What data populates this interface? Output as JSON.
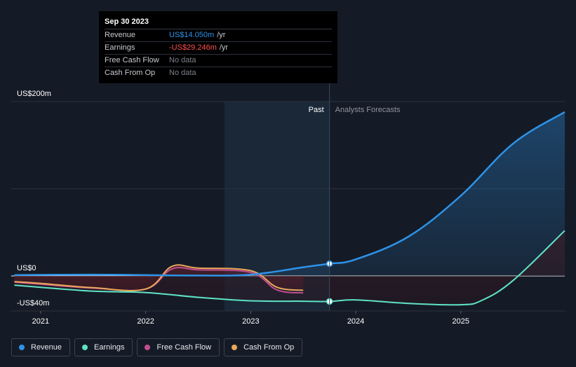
{
  "tooltip": {
    "date": "Sep 30 2023",
    "rows": [
      {
        "label": "Revenue",
        "value": "US$14.050m",
        "unit": "/yr"
      },
      {
        "label": "Earnings",
        "value": "-US$29.246m",
        "unit": "/yr"
      },
      {
        "label": "Free Cash Flow",
        "value": "No data",
        "unit": ""
      },
      {
        "label": "Cash From Op",
        "value": "No data",
        "unit": ""
      }
    ]
  },
  "regions": {
    "past": "Past",
    "forecast": "Analysts Forecasts"
  },
  "legend": [
    {
      "label": "Revenue",
      "color": "#2e93e8"
    },
    {
      "label": "Earnings",
      "color": "#5fe3c6"
    },
    {
      "label": "Free Cash Flow",
      "color": "#c14e8e"
    },
    {
      "label": "Cash From Op",
      "color": "#e9a85a"
    }
  ],
  "colors": {
    "revenue": "#2e93e8",
    "earnings": "#5fe3c6",
    "fcf": "#c14e8e",
    "cfo": "#e9a85a",
    "past_band": "#1b2a3c",
    "grid": "#2b313b"
  },
  "chart_data": {
    "type": "line",
    "title": "",
    "xlabel": "",
    "ylabel": "",
    "x_ticks": [
      "2021",
      "2022",
      "2023",
      "2024",
      "2025"
    ],
    "y_ticks": [
      "US$200m",
      "US$0",
      "-US$40m"
    ],
    "ylim": [
      -40,
      200
    ],
    "xlim": [
      2020.72,
      2025.99
    ],
    "highlight_x": 2023.75,
    "series": [
      {
        "name": "Revenue",
        "points": [
          [
            2020.75,
            1
          ],
          [
            2021.5,
            1.5
          ],
          [
            2022,
            1
          ],
          [
            2022.5,
            0.5
          ],
          [
            2023,
            1.5
          ],
          [
            2023.5,
            10
          ],
          [
            2023.75,
            14.05
          ],
          [
            2024,
            19
          ],
          [
            2024.5,
            45
          ],
          [
            2025,
            92
          ],
          [
            2025.5,
            152
          ],
          [
            2025.99,
            188
          ]
        ]
      },
      {
        "name": "Earnings",
        "points": [
          [
            2020.75,
            -10.5
          ],
          [
            2021,
            -13
          ],
          [
            2021.5,
            -17.5
          ],
          [
            2022,
            -19
          ],
          [
            2022.5,
            -24.5
          ],
          [
            2023,
            -28.5
          ],
          [
            2023.5,
            -29
          ],
          [
            2023.75,
            -29.25
          ],
          [
            2024,
            -27.5
          ],
          [
            2024.5,
            -31.5
          ],
          [
            2025,
            -33
          ],
          [
            2025.2,
            -28
          ],
          [
            2025.5,
            -5
          ],
          [
            2025.99,
            52
          ]
        ]
      },
      {
        "name": "Free Cash Flow",
        "points": [
          [
            2020.75,
            -7
          ],
          [
            2021,
            -9.5
          ],
          [
            2021.5,
            -14
          ],
          [
            2022,
            -15
          ],
          [
            2022.25,
            8
          ],
          [
            2022.5,
            7
          ],
          [
            2023,
            4
          ],
          [
            2023.25,
            -16
          ],
          [
            2023.5,
            -19.5
          ]
        ]
      },
      {
        "name": "Cash From Op",
        "points": [
          [
            2020.75,
            -6.5
          ],
          [
            2021,
            -8.5
          ],
          [
            2021.5,
            -13.5
          ],
          [
            2022,
            -15
          ],
          [
            2022.25,
            11
          ],
          [
            2022.5,
            9
          ],
          [
            2023,
            6
          ],
          [
            2023.25,
            -13
          ],
          [
            2023.5,
            -16.5
          ]
        ]
      }
    ]
  }
}
